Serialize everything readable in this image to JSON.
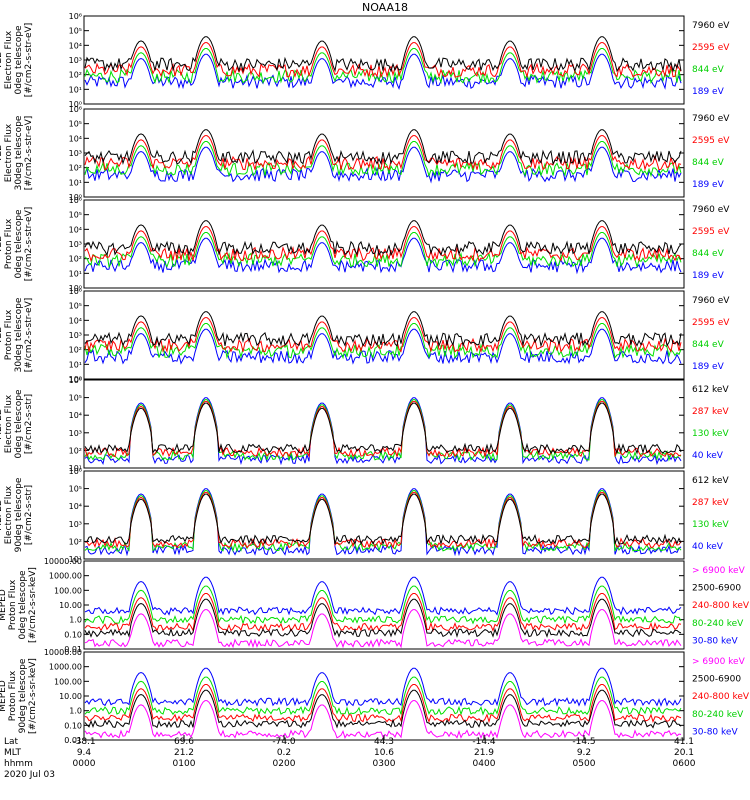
{
  "title": "NOAA18",
  "colors": {
    "black": "#000000",
    "red": "#ff0000",
    "green": "#00e000",
    "blue": "#0000ff",
    "magenta": "#ff00ff"
  },
  "chart_data": {
    "type": "line",
    "title": "NOAA18",
    "time_axis": {
      "rows": [
        "Lat",
        "MLT",
        "hhmm",
        "2020 Jul 03"
      ],
      "ticks": [
        {
          "lat": "-38.1",
          "mlt": "9.4",
          "hhmm": "0000"
        },
        {
          "lat": "69.6",
          "mlt": "21.2",
          "hhmm": "0100"
        },
        {
          "lat": "-74.0",
          "mlt": "0.2",
          "hhmm": "0200"
        },
        {
          "lat": "44.3",
          "mlt": "10.6",
          "hhmm": "0300"
        },
        {
          "lat": "-14.4",
          "mlt": "21.9",
          "hhmm": "0400"
        },
        {
          "lat": "-14.5",
          "mlt": "9.2",
          "hhmm": "0500"
        },
        {
          "lat": "41.1",
          "mlt": "20.1",
          "hhmm": "0600"
        }
      ]
    },
    "panels": [
      {
        "id": "ted-e-0",
        "ylabel": [
          "TED",
          "Electron Flux",
          "0deg telescope",
          "[#/cm2-s-str-eV]"
        ],
        "yticks": [
          "10⁰",
          "10¹",
          "10²",
          "10³",
          "10⁴",
          "10⁵",
          "10⁶"
        ],
        "ylog": [
          0,
          6
        ],
        "series": [
          {
            "name": "7960 eV",
            "color": "#000000"
          },
          {
            "name": "2595 eV",
            "color": "#ff0000"
          },
          {
            "name": "844 eV",
            "color": "#00e000"
          },
          {
            "name": "189 eV",
            "color": "#0000ff"
          }
        ]
      },
      {
        "id": "ted-e-30",
        "ylabel": [
          "TED",
          "Electron Flux",
          "30deg telescope",
          "[#/cm2-s-str-eV]"
        ],
        "yticks": [
          "10⁰",
          "10¹",
          "10²",
          "10³",
          "10⁴",
          "10⁵",
          "10⁶"
        ],
        "ylog": [
          0,
          6
        ],
        "series": [
          {
            "name": "7960 eV",
            "color": "#000000"
          },
          {
            "name": "2595 eV",
            "color": "#ff0000"
          },
          {
            "name": "844 eV",
            "color": "#00e000"
          },
          {
            "name": "189 eV",
            "color": "#0000ff"
          }
        ]
      },
      {
        "id": "ted-p-0",
        "ylabel": [
          "TED",
          "Proton Flux",
          "0deg telescope",
          "[#/cm2-s-str-eV]"
        ],
        "yticks": [
          "10⁰",
          "10¹",
          "10²",
          "10³",
          "10⁴",
          "10⁵",
          "10⁶"
        ],
        "ylog": [
          0,
          6
        ],
        "series": [
          {
            "name": "7960 eV",
            "color": "#000000"
          },
          {
            "name": "2595 eV",
            "color": "#ff0000"
          },
          {
            "name": "844 eV",
            "color": "#00e000"
          },
          {
            "name": "189 eV",
            "color": "#0000ff"
          }
        ]
      },
      {
        "id": "ted-p-30",
        "ylabel": [
          "TED",
          "Proton Flux",
          "30deg telescope",
          "[#/cm2-s-str-eV]"
        ],
        "yticks": [
          "10⁰",
          "10¹",
          "10²",
          "10³",
          "10⁴",
          "10⁵",
          "10⁶"
        ],
        "ylog": [
          0,
          6
        ],
        "series": [
          {
            "name": "7960 eV",
            "color": "#000000"
          },
          {
            "name": "2595 eV",
            "color": "#ff0000"
          },
          {
            "name": "844 eV",
            "color": "#00e000"
          },
          {
            "name": "189 eV",
            "color": "#0000ff"
          }
        ]
      },
      {
        "id": "meped-e-0",
        "ylabel": [
          "MEPED",
          "Electron Flux",
          "0deg telescope",
          "[#/cm2-s-str]"
        ],
        "yticks": [
          "10¹",
          "10²",
          "10³",
          "10⁴",
          "10⁵",
          "10⁶"
        ],
        "ylog": [
          1,
          6
        ],
        "series": [
          {
            "name": "612 keV",
            "color": "#000000"
          },
          {
            "name": "287 keV",
            "color": "#ff0000"
          },
          {
            "name": "130 keV",
            "color": "#00e000"
          },
          {
            "name": "40 keV",
            "color": "#0000ff"
          }
        ]
      },
      {
        "id": "meped-e-90",
        "ylabel": [
          "MEPED",
          "Electron Flux",
          "90deg telescope",
          "[#/cm2-s-str]"
        ],
        "yticks": [
          "10¹",
          "10²",
          "10³",
          "10⁴",
          "10⁵",
          "10⁶"
        ],
        "ylog": [
          1,
          6
        ],
        "series": [
          {
            "name": "612 keV",
            "color": "#000000"
          },
          {
            "name": "287 keV",
            "color": "#ff0000"
          },
          {
            "name": "130 keV",
            "color": "#00e000"
          },
          {
            "name": "40 keV",
            "color": "#0000ff"
          }
        ]
      },
      {
        "id": "meped-p-0",
        "ylabel": [
          "MEPED",
          "Proton Flux",
          "0deg telescope",
          "[#/cm2-s-sr-keV]"
        ],
        "yticks": [
          "0.01",
          "0.10",
          "1.0",
          "10.00",
          "100.00",
          "1000.00",
          "10000.00"
        ],
        "ylog": [
          -2,
          4
        ],
        "series": [
          {
            "name": "> 6900 keV",
            "color": "#ff00ff"
          },
          {
            "name": "2500-6900",
            "color": "#000000"
          },
          {
            "name": "240-800 keV",
            "color": "#ff0000"
          },
          {
            "name": "80-240 keV",
            "color": "#00e000"
          },
          {
            "name": "30-80 keV",
            "color": "#0000ff"
          }
        ]
      },
      {
        "id": "meped-p-90",
        "ylabel": [
          "MEPED",
          "Proton Flux",
          "90deg telescope",
          "[#/cm2-s-sr-keV]"
        ],
        "yticks": [
          "0.01",
          "0.10",
          "1.0",
          "10.00",
          "100.00",
          "1000.00",
          "10000.00"
        ],
        "ylog": [
          -2,
          4
        ],
        "series": [
          {
            "name": "> 6900 keV",
            "color": "#ff00ff"
          },
          {
            "name": "2500-6900",
            "color": "#000000"
          },
          {
            "name": "240-800 keV",
            "color": "#ff0000"
          },
          {
            "name": "80-240 keV",
            "color": "#00e000"
          },
          {
            "name": "30-80 keV",
            "color": "#0000ff"
          }
        ]
      }
    ]
  }
}
